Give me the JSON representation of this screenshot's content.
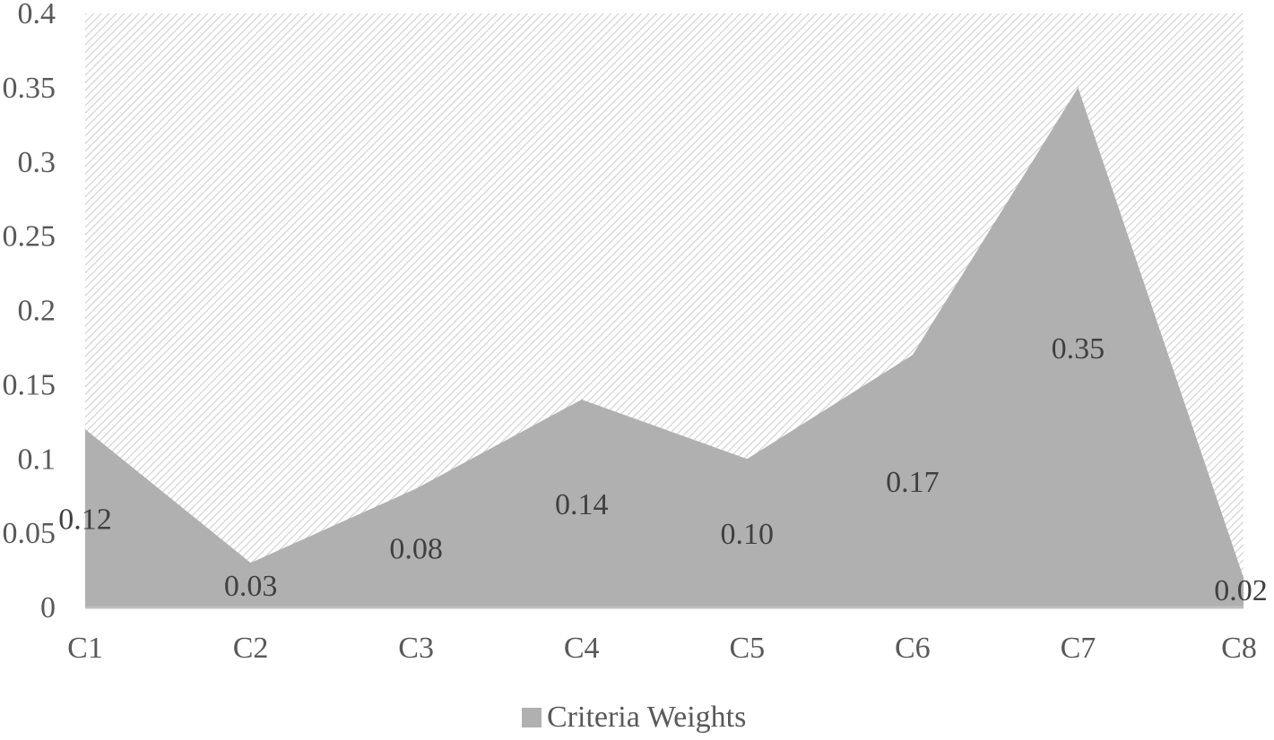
{
  "chart_data": {
    "type": "area",
    "categories": [
      "C1",
      "C2",
      "C3",
      "C4",
      "C5",
      "C6",
      "C7",
      "C8"
    ],
    "series": [
      {
        "name": "Criteria Weights",
        "values": [
          0.12,
          0.03,
          0.08,
          0.14,
          0.1,
          0.17,
          0.35,
          0.02
        ],
        "data_labels": [
          "0.12",
          "0.03",
          "0.08",
          "0.14",
          "0.10",
          "0.17",
          "0.35",
          "0.02"
        ]
      }
    ],
    "y_ticks": [
      "0",
      "0.05",
      "0.1",
      "0.15",
      "0.2",
      "0.25",
      "0.3",
      "0.35",
      "0.4"
    ],
    "ylim": [
      0,
      0.4
    ],
    "grid": false,
    "plot_background": "hatched light gray",
    "legend_position": "bottom",
    "colors": {
      "fill": "#b0b0b0",
      "axis": "#bfbfbf",
      "text": "#595959",
      "hatch": "#d0d0d0"
    }
  }
}
